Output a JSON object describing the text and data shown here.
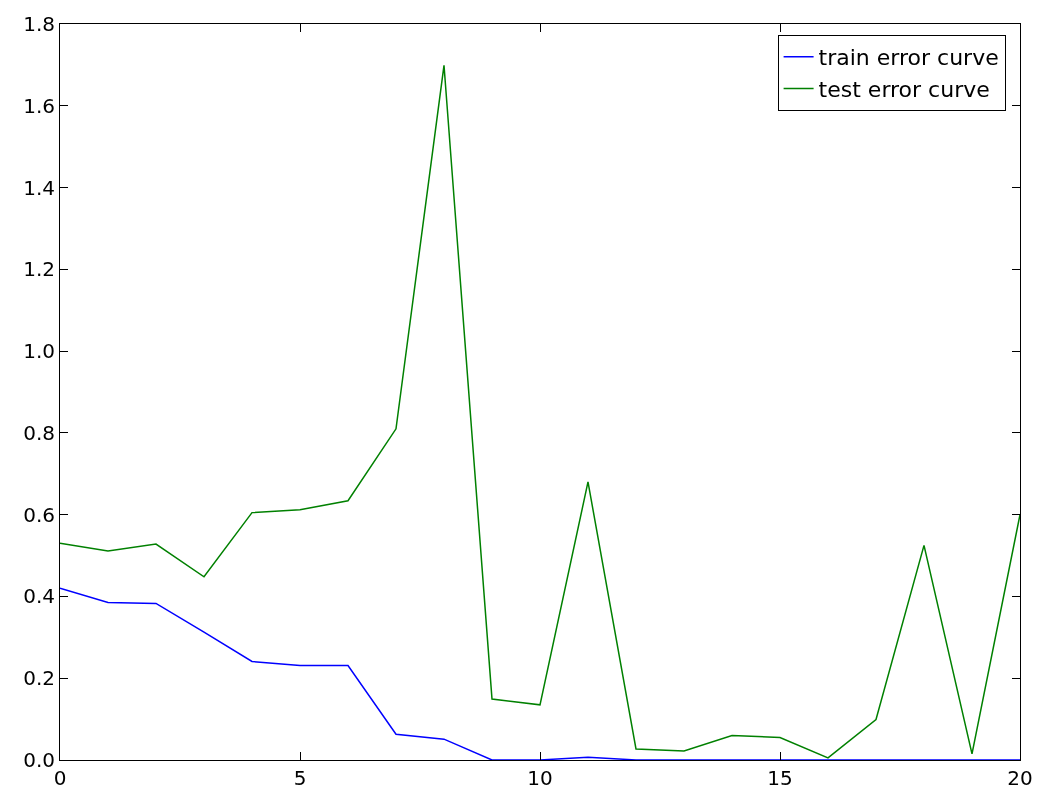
{
  "chart_data": {
    "type": "line",
    "x": [
      0,
      1,
      2,
      3,
      4,
      5,
      6,
      7,
      8,
      9,
      10,
      11,
      12,
      13,
      14,
      15,
      16,
      17,
      18,
      19,
      20
    ],
    "series": [
      {
        "name": "train error curve",
        "color": "#0000ff",
        "values": [
          0.42,
          0.385,
          0.383,
          0.313,
          0.241,
          0.231,
          0.231,
          0.063,
          0.051,
          0,
          0,
          0.007,
          0,
          0,
          0,
          0,
          0,
          0,
          0,
          0,
          0
        ]
      },
      {
        "name": "test error curve",
        "color": "#008000",
        "values": [
          0.53,
          0.511,
          0.528,
          0.448,
          0.605,
          0.612,
          0.634,
          0.81,
          1.699,
          0.149,
          0.135,
          0.68,
          0.027,
          0.022,
          0.06,
          0.055,
          0.005,
          0.099,
          0.525,
          0.015,
          0.6
        ]
      }
    ],
    "xlim": [
      0,
      20
    ],
    "xticks": [
      0,
      5,
      10,
      15,
      20
    ],
    "ylim": [
      0,
      1.8
    ],
    "yticks": [
      {
        "value": 0,
        "label": "0.0"
      },
      {
        "value": 0.2,
        "label": "0.2"
      },
      {
        "value": 0.4,
        "label": "0.4"
      },
      {
        "value": 0.6,
        "label": "0.6"
      },
      {
        "value": 0.8,
        "label": "0.8"
      },
      {
        "value": 1.0,
        "label": "1.0"
      },
      {
        "value": 1.2,
        "label": "1.2"
      },
      {
        "value": 1.4,
        "label": "1.4"
      },
      {
        "value": 1.6,
        "label": "1.6"
      },
      {
        "value": 1.8,
        "label": "1.8"
      }
    ],
    "legend": "top right",
    "marker": "none",
    "line_style": "solid"
  }
}
